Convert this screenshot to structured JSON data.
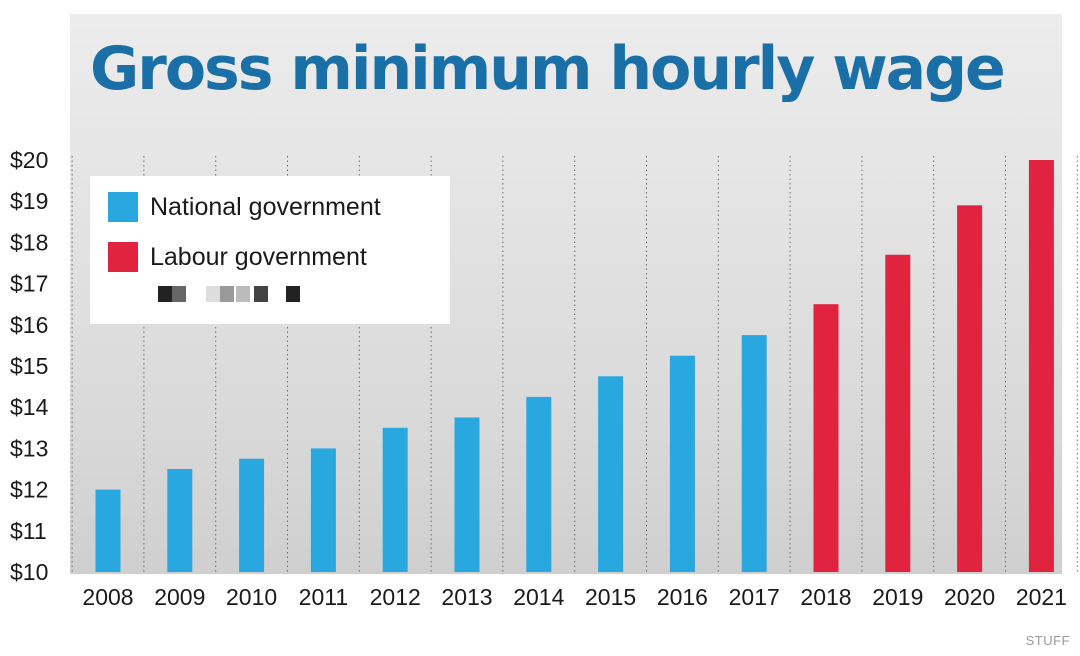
{
  "chart_data": {
    "type": "bar",
    "title": "Gross minimum hourly wage",
    "categories": [
      "2008",
      "2009",
      "2010",
      "2011",
      "2012",
      "2013",
      "2014",
      "2015",
      "2016",
      "2017",
      "2018",
      "2019",
      "2020",
      "2021"
    ],
    "series": [
      {
        "name": "National government",
        "color": "#29a8e0",
        "values": [
          12.0,
          12.5,
          12.75,
          13.0,
          13.5,
          13.75,
          14.25,
          14.75,
          15.25,
          15.75,
          null,
          null,
          null,
          null
        ]
      },
      {
        "name": "Labour government",
        "color": "#e0233f",
        "values": [
          null,
          null,
          null,
          null,
          null,
          null,
          null,
          null,
          null,
          null,
          16.5,
          17.7,
          18.9,
          20.0
        ]
      }
    ],
    "ylim": [
      10,
      20
    ],
    "yticks": [
      "$20",
      "$19",
      "$18",
      "$17",
      "$16",
      "$15",
      "$14",
      "$13",
      "$12",
      "$11",
      "$10"
    ],
    "grid": "vertical-dotted",
    "legend_position": "top-left"
  },
  "source": "STUFF"
}
